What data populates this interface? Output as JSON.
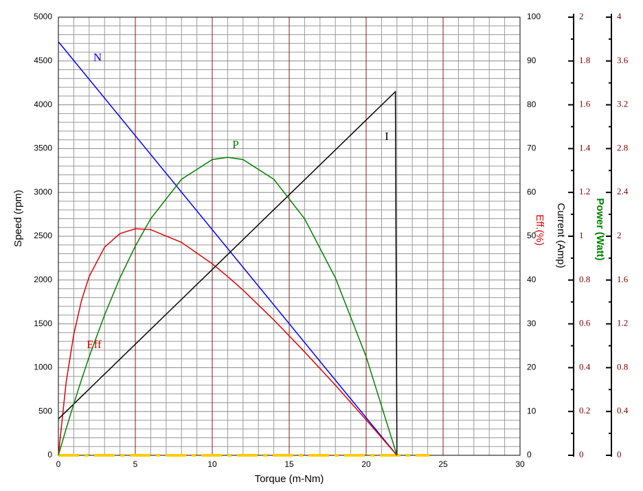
{
  "chart_data": {
    "type": "line",
    "xlabel": "Torque (m-Nm)",
    "ylabel": "Speed (rpm)",
    "y2label": "Eff.(%)",
    "y3label": "Current (Amp)",
    "y4label": "Power (Watt)",
    "xlim": [
      0,
      30
    ],
    "xticks": [
      0,
      5,
      10,
      15,
      20,
      25,
      30
    ],
    "ylim": [
      0,
      5000
    ],
    "yticks": [
      0,
      500,
      1000,
      1500,
      2000,
      2500,
      3000,
      3500,
      4000,
      4500,
      5000
    ],
    "y2lim": [
      0,
      100
    ],
    "y2ticks": [
      0,
      10,
      20,
      30,
      40,
      50,
      60,
      70,
      80,
      90,
      100
    ],
    "y3lim": [
      0,
      2
    ],
    "y3ticks": [
      0,
      0.2,
      0.4,
      0.6,
      0.8,
      1,
      1.2,
      1.4,
      1.6,
      1.8,
      2
    ],
    "y4lim": [
      0,
      4
    ],
    "y4ticks": [
      0,
      0.4,
      0.8,
      1.2,
      1.6,
      2,
      2.4,
      2.8,
      3.2,
      3.6,
      4
    ],
    "grid": true,
    "series": [
      {
        "name": "N",
        "color": "#0000ff",
        "axis": "y",
        "x": [
          0,
          22
        ],
        "values": [
          4720,
          0
        ]
      },
      {
        "name": "Eff",
        "color": "#e00000",
        "axis": "y2",
        "x": [
          0,
          0.5,
          1,
          1.5,
          2,
          3,
          4,
          5,
          6,
          8,
          10,
          11,
          12,
          14,
          16,
          18,
          20,
          22
        ],
        "values": [
          0,
          16.6,
          27.6,
          35.3,
          40.8,
          47.5,
          50.6,
          51.7,
          51.5,
          48.6,
          43.7,
          40.8,
          37.7,
          30.9,
          23.6,
          16.0,
          8.1,
          0
        ]
      },
      {
        "name": "I",
        "color": "#000000",
        "axis": "y3",
        "x": [
          0,
          21.9,
          22
        ],
        "values": [
          0.166,
          1.66,
          0
        ]
      },
      {
        "name": "P",
        "color": "#008000",
        "axis": "y4",
        "x": [
          0,
          0.5,
          1,
          1.5,
          2,
          3,
          4,
          5,
          6,
          8,
          10,
          11,
          12,
          14,
          16,
          18,
          20,
          22
        ],
        "values": [
          0,
          0.24,
          0.47,
          0.69,
          0.9,
          1.28,
          1.62,
          1.91,
          2.16,
          2.52,
          2.7,
          2.72,
          2.7,
          2.52,
          2.16,
          1.62,
          0.9,
          0
        ]
      }
    ]
  }
}
